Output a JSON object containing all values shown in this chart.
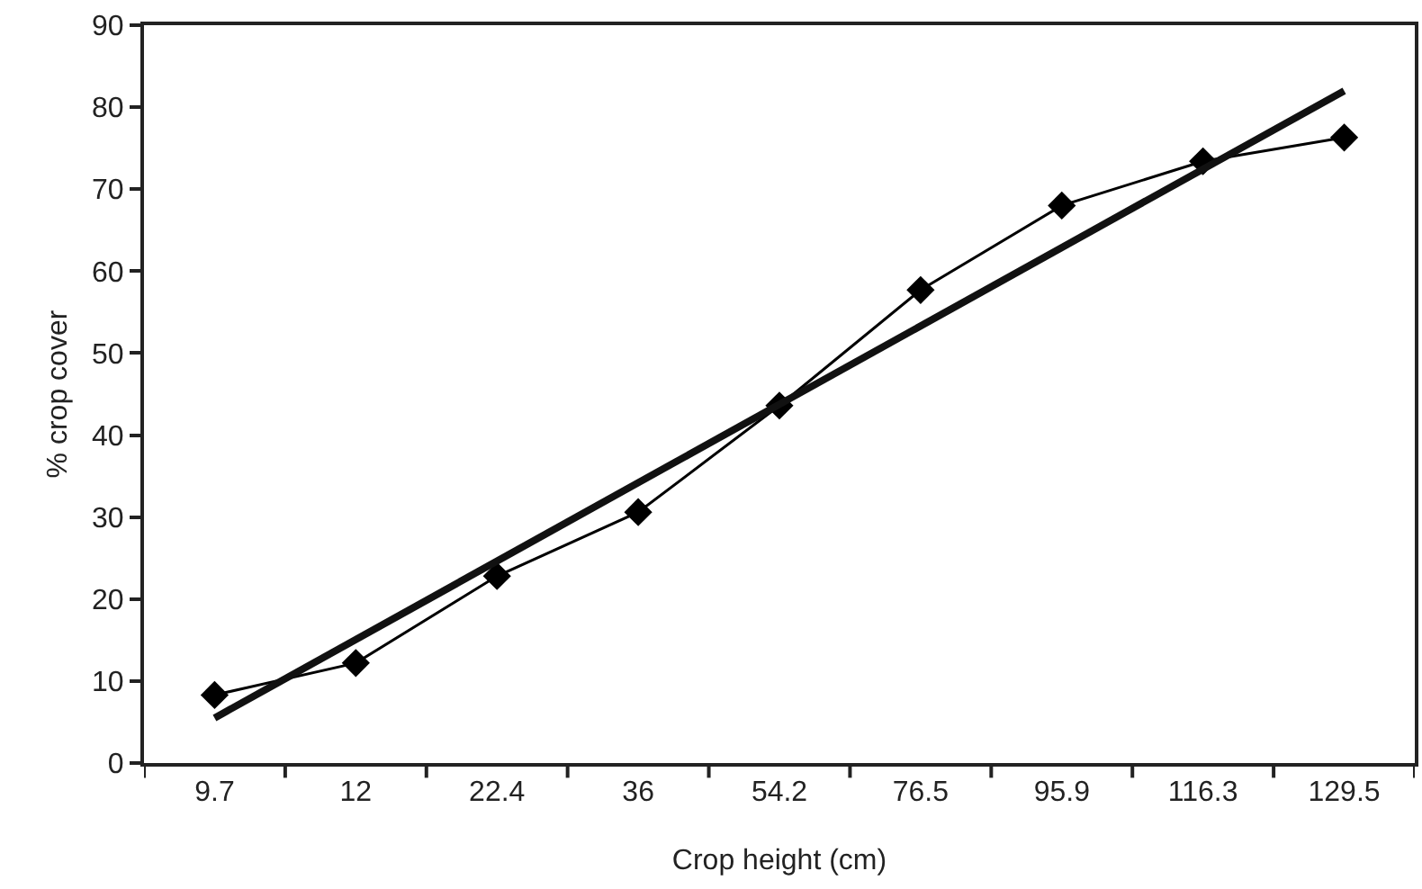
{
  "chart_data": {
    "type": "line",
    "xlabel": "Crop height (cm)",
    "ylabel": "% crop cover",
    "categories": [
      "9.7",
      "12",
      "22.4",
      "36",
      "54.2",
      "76.5",
      "95.9",
      "116.3",
      "129.5"
    ],
    "series": [
      {
        "color": "#000000",
        "marker": "diamond",
        "values": [
          8.3,
          12.2,
          22.8,
          30.6,
          43.6,
          57.7,
          68,
          73.4,
          76.3
        ]
      },
      {
        "color": "#111111",
        "marker": "none",
        "x": [
          "9.7",
          "129.5"
        ],
        "values": [
          5.5,
          82
        ]
      }
    ],
    "ylim": [
      0,
      90
    ],
    "yticks": [
      0,
      10,
      20,
      30,
      40,
      50,
      60,
      70,
      80,
      90
    ],
    "grid": false
  }
}
